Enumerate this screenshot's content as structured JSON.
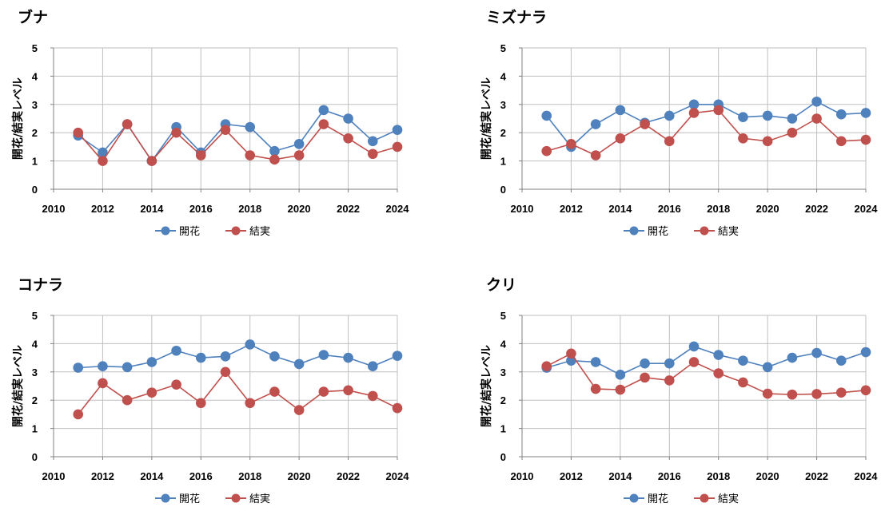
{
  "colors": {
    "bloom": "#4f81bd",
    "fruit": "#c0504d",
    "grid": "#bfbfbf",
    "axis": "#808080"
  },
  "chart_data": [
    {
      "type": "line",
      "title": "ブナ",
      "ylabel": "開花/結実レベル",
      "xlim": [
        2010,
        2024
      ],
      "ylim": [
        0,
        5
      ],
      "xticks": [
        "2010",
        "2012",
        "2014",
        "2016",
        "2018",
        "2020",
        "2022",
        "2024"
      ],
      "yticks": [
        "0",
        "1",
        "2",
        "3",
        "4",
        "5"
      ],
      "grid": true,
      "legend": "bottom",
      "x": [
        2011,
        2012,
        2013,
        2014,
        2015,
        2016,
        2017,
        2018,
        2019,
        2020,
        2021,
        2022,
        2023,
        2024
      ],
      "series": [
        {
          "name": "開花",
          "color": "#4f81bd",
          "values": [
            1.9,
            1.3,
            2.3,
            1.0,
            2.2,
            1.3,
            2.3,
            2.2,
            1.35,
            1.6,
            2.8,
            2.5,
            1.7,
            2.1
          ]
        },
        {
          "name": "結実",
          "color": "#c0504d",
          "values": [
            2.0,
            1.0,
            2.3,
            1.0,
            2.0,
            1.2,
            2.1,
            1.2,
            1.05,
            1.2,
            2.3,
            1.8,
            1.25,
            1.5
          ]
        }
      ]
    },
    {
      "type": "line",
      "title": "ミズナラ",
      "ylabel": "開花/結実レベル",
      "xlim": [
        2010,
        2024
      ],
      "ylim": [
        0,
        5
      ],
      "xticks": [
        "2010",
        "2012",
        "2014",
        "2016",
        "2018",
        "2020",
        "2022",
        "2024"
      ],
      "yticks": [
        "0",
        "1",
        "2",
        "3",
        "4",
        "5"
      ],
      "grid": true,
      "legend": "bottom",
      "x": [
        2011,
        2012,
        2013,
        2014,
        2015,
        2016,
        2017,
        2018,
        2019,
        2020,
        2021,
        2022,
        2023,
        2024
      ],
      "series": [
        {
          "name": "開花",
          "color": "#4f81bd",
          "values": [
            2.6,
            1.5,
            2.3,
            2.8,
            2.35,
            2.6,
            3.0,
            3.0,
            2.55,
            2.6,
            2.5,
            3.1,
            2.65,
            2.7
          ]
        },
        {
          "name": "結実",
          "color": "#c0504d",
          "values": [
            1.35,
            1.6,
            1.2,
            1.8,
            2.3,
            1.7,
            2.7,
            2.8,
            1.8,
            1.7,
            2.0,
            2.5,
            1.7,
            1.75
          ]
        }
      ]
    },
    {
      "type": "line",
      "title": "コナラ",
      "ylabel": "開花/結実レベル",
      "xlim": [
        2010,
        2024
      ],
      "ylim": [
        0,
        5
      ],
      "xticks": [
        "2010",
        "2012",
        "2014",
        "2016",
        "2018",
        "2020",
        "2022",
        "2024"
      ],
      "yticks": [
        "0",
        "1",
        "2",
        "3",
        "4",
        "5"
      ],
      "grid": true,
      "legend": "bottom",
      "x": [
        2011,
        2012,
        2013,
        2014,
        2015,
        2016,
        2017,
        2018,
        2019,
        2020,
        2021,
        2022,
        2023,
        2024
      ],
      "series": [
        {
          "name": "開花",
          "color": "#4f81bd",
          "values": [
            3.15,
            3.2,
            3.17,
            3.35,
            3.75,
            3.5,
            3.55,
            3.97,
            3.55,
            3.28,
            3.6,
            3.5,
            3.2,
            3.57
          ]
        },
        {
          "name": "結実",
          "color": "#c0504d",
          "values": [
            1.5,
            2.6,
            2.0,
            2.27,
            2.55,
            1.9,
            3.0,
            1.9,
            2.3,
            1.65,
            2.3,
            2.35,
            2.15,
            1.72
          ]
        }
      ]
    },
    {
      "type": "line",
      "title": "クリ",
      "ylabel": "開花/結実レベル",
      "xlim": [
        2010,
        2024
      ],
      "ylim": [
        0,
        5
      ],
      "xticks": [
        "2010",
        "2012",
        "2014",
        "2016",
        "2018",
        "2020",
        "2022",
        "2024"
      ],
      "yticks": [
        "0",
        "1",
        "2",
        "3",
        "4",
        "5"
      ],
      "grid": true,
      "legend": "bottom",
      "x": [
        2011,
        2012,
        2013,
        2014,
        2015,
        2016,
        2017,
        2018,
        2019,
        2020,
        2021,
        2022,
        2023,
        2024
      ],
      "series": [
        {
          "name": "開花",
          "color": "#4f81bd",
          "values": [
            3.15,
            3.4,
            3.35,
            2.9,
            3.3,
            3.3,
            3.9,
            3.6,
            3.4,
            3.17,
            3.5,
            3.67,
            3.4,
            3.7
          ]
        },
        {
          "name": "結実",
          "color": "#c0504d",
          "values": [
            3.2,
            3.65,
            2.4,
            2.37,
            2.8,
            2.7,
            3.35,
            2.95,
            2.63,
            2.23,
            2.2,
            2.22,
            2.27,
            2.35
          ]
        }
      ]
    }
  ]
}
